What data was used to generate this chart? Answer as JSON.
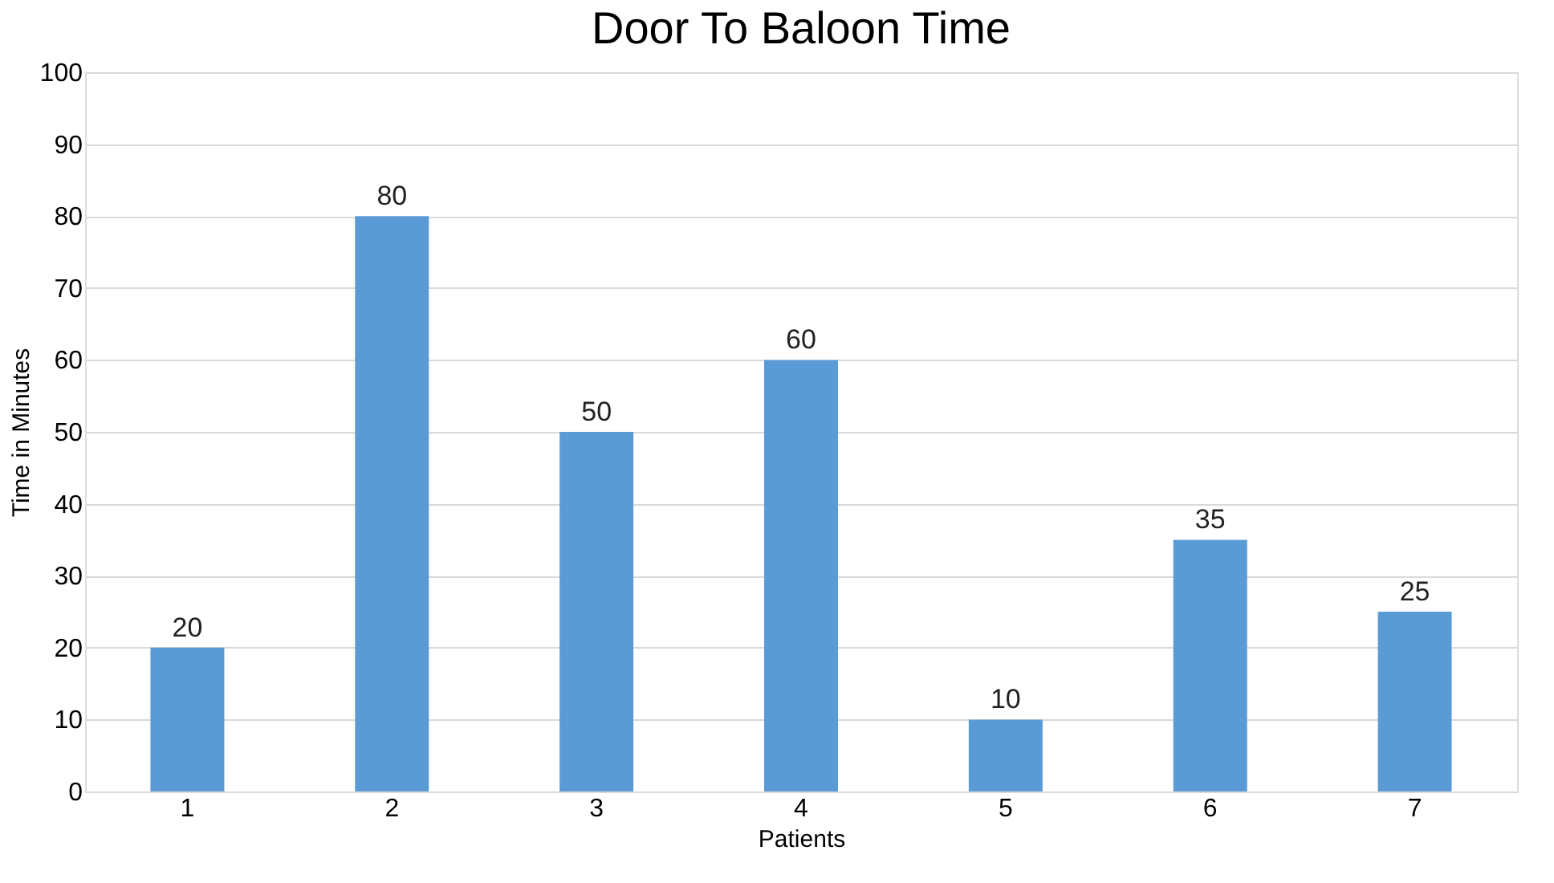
{
  "chart_data": {
    "type": "bar",
    "title": "Door To Baloon Time",
    "xlabel": "Patients",
    "ylabel": "Time in Minutes",
    "categories": [
      "1",
      "2",
      "3",
      "4",
      "5",
      "6",
      "7"
    ],
    "values": [
      20,
      80,
      50,
      60,
      10,
      35,
      25
    ],
    "color": "#5b9bd5",
    "ylim": [
      0,
      100
    ],
    "yticks": [
      0,
      10,
      20,
      30,
      40,
      50,
      60,
      70,
      80,
      90,
      100
    ],
    "grid": "y",
    "data_labels": true
  }
}
